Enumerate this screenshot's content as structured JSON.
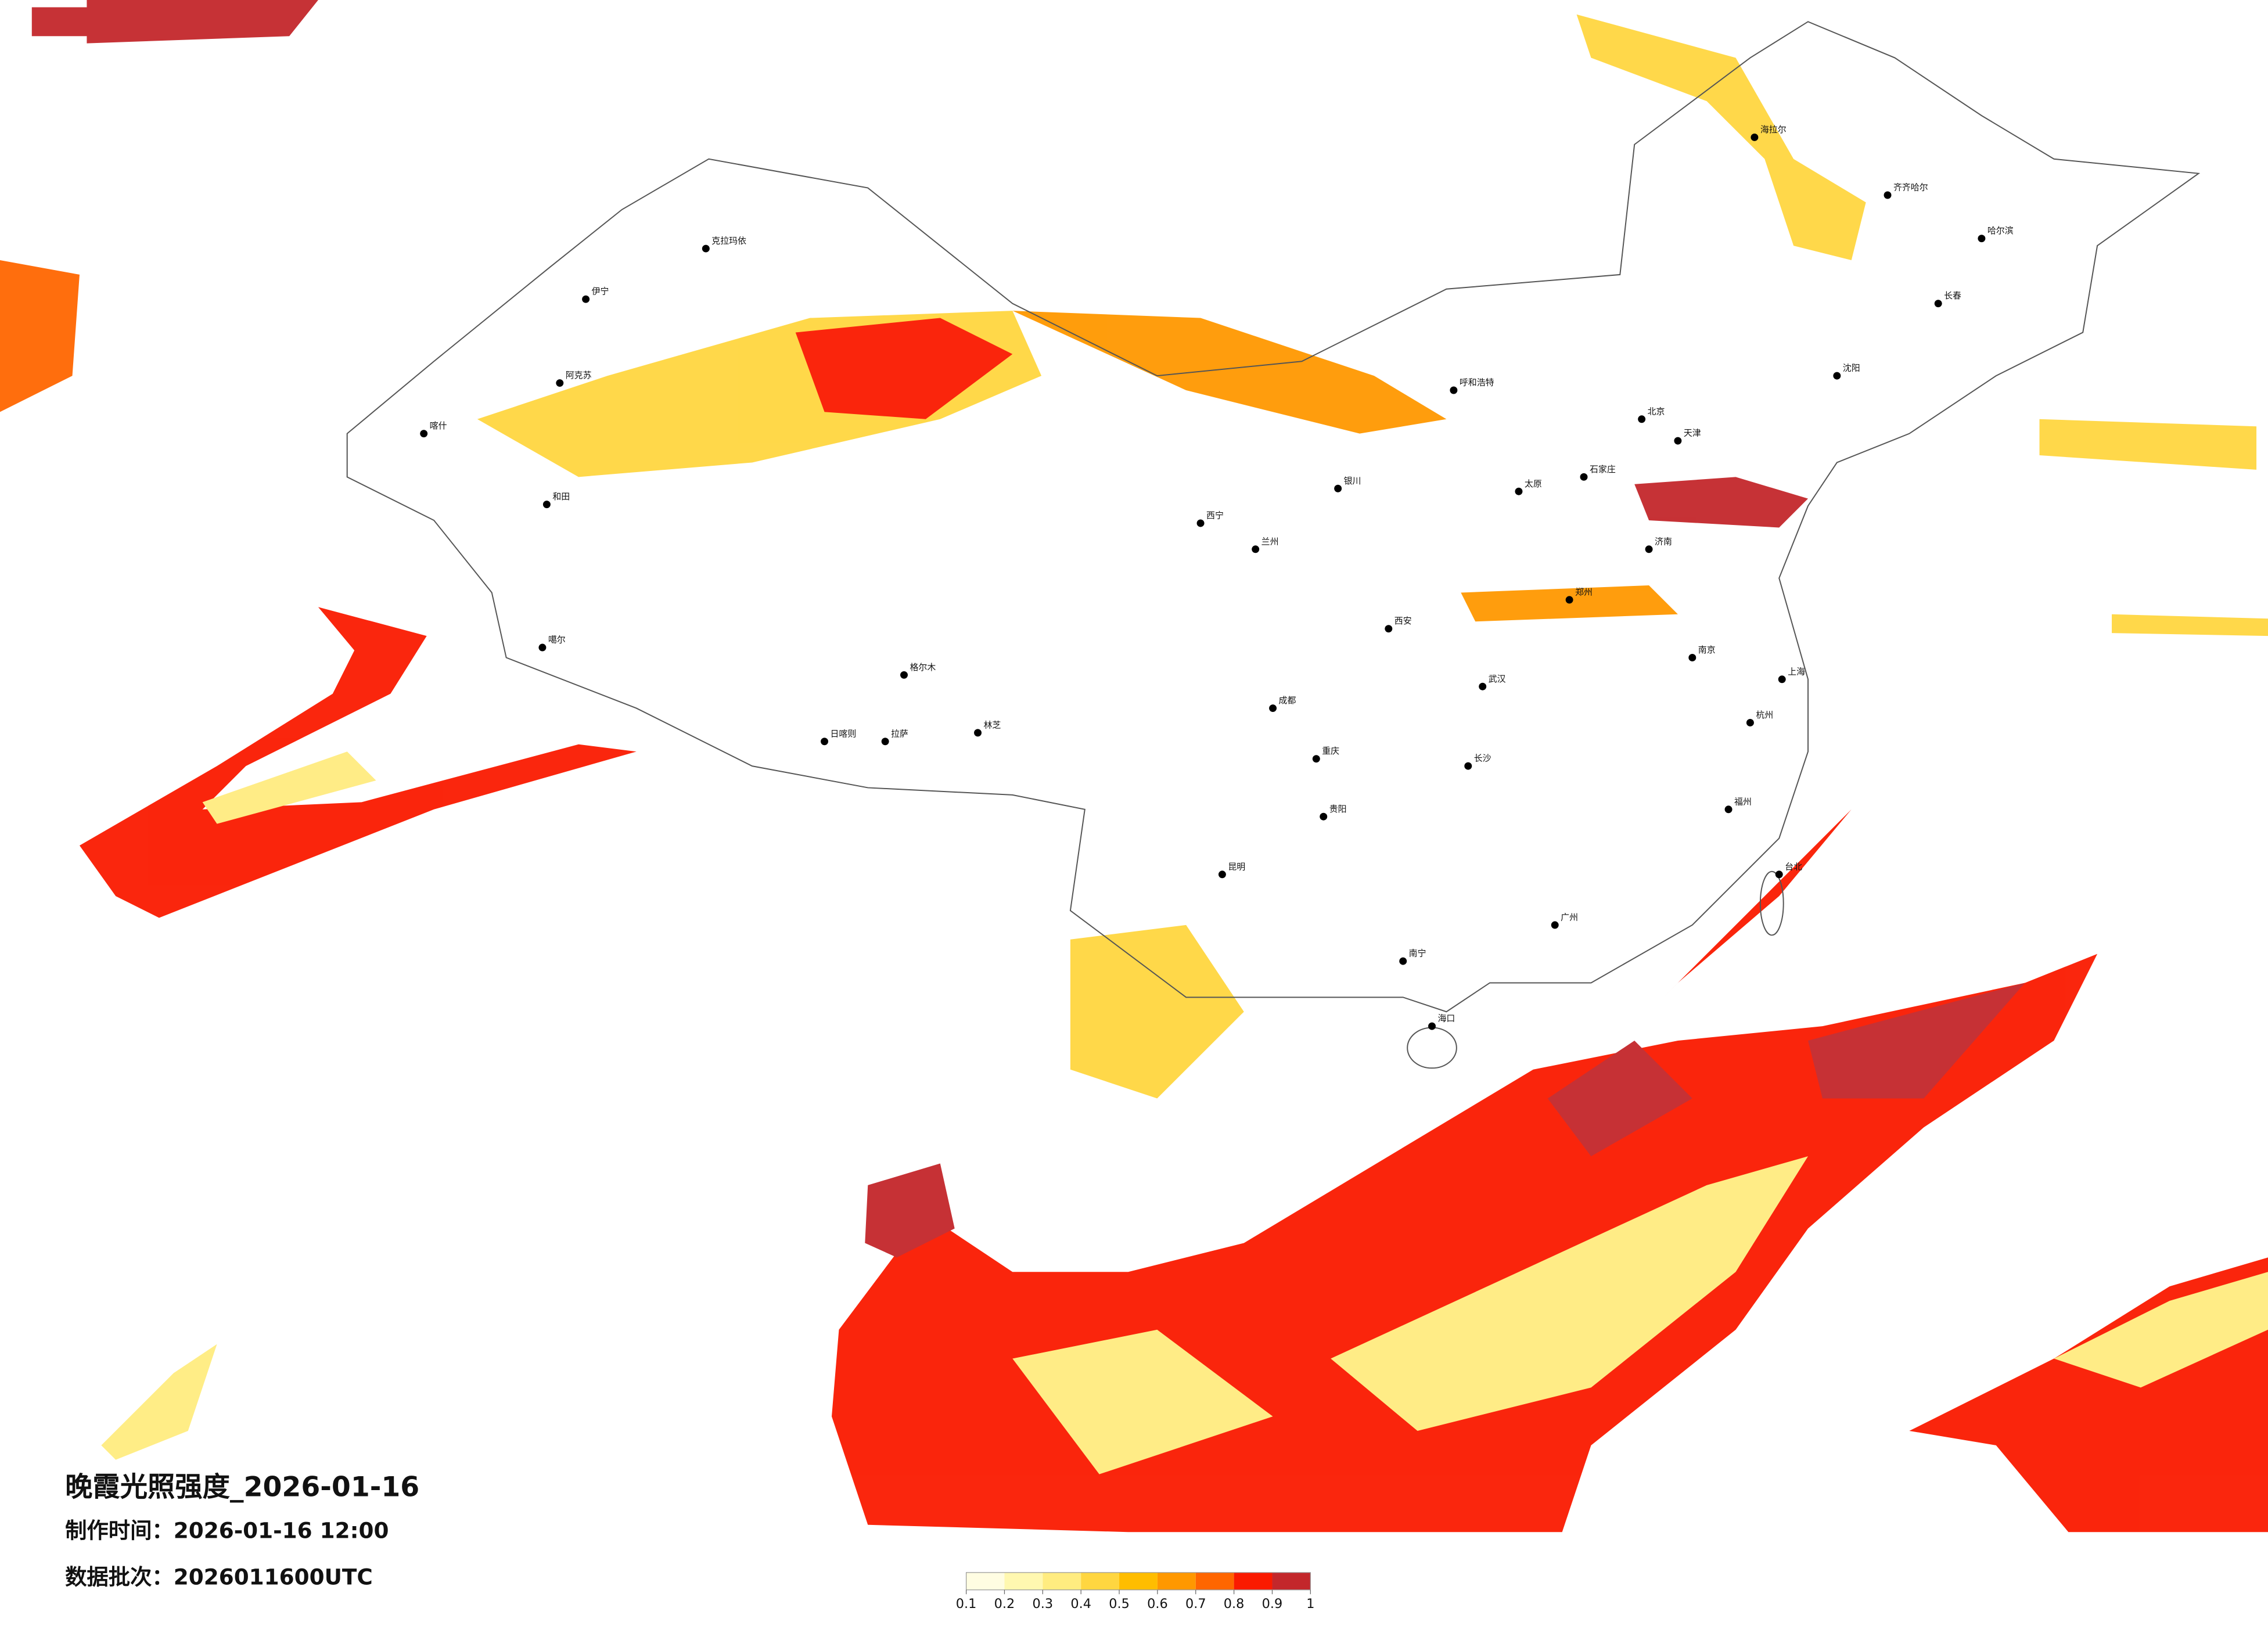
{
  "title": "晚霞光照强度_2026-01-16",
  "produced": "制作时间：2026-01-16 12:00",
  "batch": "数据批次：2026011600UTC",
  "colorbar": {
    "ticks": [
      0.1,
      0.2,
      0.3,
      0.4,
      0.5,
      0.6,
      0.7,
      0.8,
      0.9,
      1
    ],
    "colors": [
      "#fffde2",
      "#fff8b0",
      "#ffec80",
      "#ffd640",
      "#ffbd00",
      "#ff9800",
      "#ff6600",
      "#fa1a00",
      "#c3272b"
    ]
  },
  "cities": [
    "克拉玛依",
    "伊宁",
    "阿克苏",
    "和田",
    "喀什",
    "噶尔",
    "日喀则",
    "拉萨",
    "格尔木",
    "林芝",
    "西宁",
    "兰州",
    "银川",
    "呼和浩特",
    "北京",
    "天津",
    "石家庄",
    "太原",
    "济南",
    "郑州",
    "西安",
    "成都",
    "重庆",
    "武汉",
    "长沙",
    "南京",
    "上海",
    "杭州",
    "福州",
    "广州",
    "南宁",
    "昆明",
    "贵阳",
    "海口",
    "哈尔滨",
    "长春",
    "沈阳",
    "齐齐哈尔",
    "海拉尔",
    "台北"
  ]
}
